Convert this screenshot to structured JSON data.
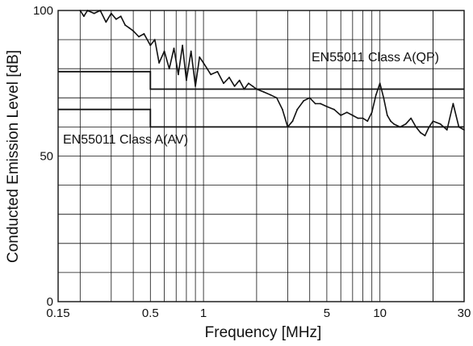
{
  "chart_data": {
    "type": "line",
    "xlabel": "Frequency [MHz]",
    "ylabel": "Conducted Emission Level [dB]",
    "x_scale": "log",
    "xlim": [
      0.15,
      30
    ],
    "ylim": [
      0,
      100
    ],
    "grid": true,
    "x_ticks": [
      {
        "value": 0.15,
        "label": "0.15"
      },
      {
        "value": 0.5,
        "label": "0.5"
      },
      {
        "value": 1,
        "label": "1"
      },
      {
        "value": 5,
        "label": "5"
      },
      {
        "value": 10,
        "label": "10"
      },
      {
        "value": 30,
        "label": "30"
      }
    ],
    "y_ticks": [
      {
        "value": 0,
        "label": "0"
      },
      {
        "value": 50,
        "label": "50"
      },
      {
        "value": 100,
        "label": "100"
      }
    ],
    "limit_lines": [
      {
        "name": "EN55011 Class A(QP)",
        "points": [
          [
            0.15,
            79
          ],
          [
            0.5,
            79
          ],
          [
            0.5,
            73
          ],
          [
            30,
            73
          ]
        ]
      },
      {
        "name": "EN55011 Class A(AV)",
        "points": [
          [
            0.15,
            66
          ],
          [
            0.5,
            66
          ],
          [
            0.5,
            60
          ],
          [
            30,
            60
          ]
        ]
      }
    ],
    "series": [
      {
        "x": [
          0.2,
          0.21,
          0.22,
          0.24,
          0.26,
          0.28,
          0.3,
          0.32,
          0.34,
          0.36,
          0.38,
          0.4,
          0.43,
          0.46,
          0.5,
          0.53,
          0.56,
          0.6,
          0.64,
          0.68,
          0.72,
          0.76,
          0.8,
          0.85,
          0.9,
          0.95,
          1.0,
          1.1,
          1.2,
          1.3,
          1.4,
          1.5,
          1.6,
          1.7,
          1.8,
          1.9,
          2.0,
          2.2,
          2.4,
          2.6,
          2.8,
          3.0,
          3.2,
          3.4,
          3.7,
          4.0,
          4.3,
          4.6,
          5.0,
          5.5,
          6.0,
          6.5,
          7.0,
          7.5,
          8.0,
          8.5,
          9.0,
          9.5,
          10.0,
          10.5,
          11.0,
          11.5,
          12.0,
          13.0,
          14.0,
          15.0,
          16.0,
          17.0,
          18.0,
          19.0,
          20.0,
          22.0,
          24.0,
          26.0,
          28.0,
          30.0
        ],
        "y": [
          100,
          98,
          100,
          99,
          100,
          96,
          99,
          97,
          98,
          95,
          94,
          93,
          91,
          92,
          88,
          90,
          82,
          86,
          80,
          87,
          78,
          88,
          76,
          86,
          74,
          84,
          82,
          78,
          79,
          75,
          77,
          74,
          76,
          73,
          75,
          74,
          73,
          72,
          71,
          70,
          66,
          60,
          62,
          66,
          69,
          70,
          68,
          68,
          67,
          66,
          64,
          65,
          64,
          63,
          63,
          62,
          65,
          71,
          75,
          70,
          64,
          62,
          61,
          60,
          61,
          63,
          60,
          58,
          57,
          60,
          62,
          61,
          59,
          68,
          60,
          59
        ]
      }
    ]
  }
}
